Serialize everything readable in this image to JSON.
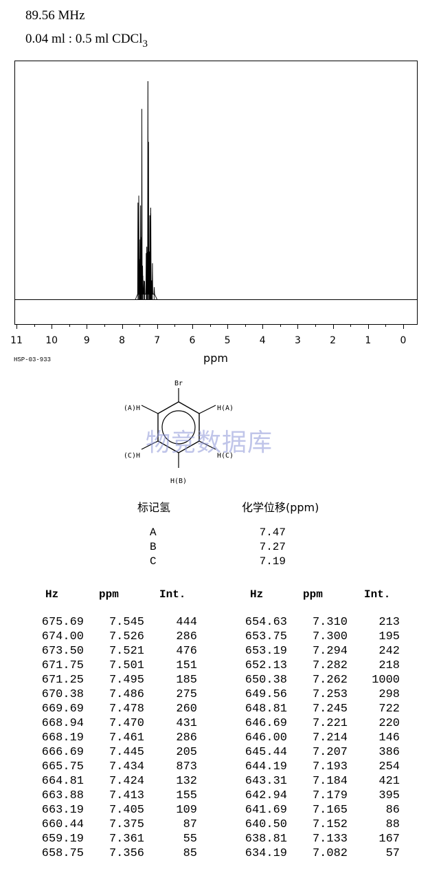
{
  "header": {
    "frequency": "89.56 MHz",
    "sample_main": "0.04 ml : 0.5 ml CDCl",
    "sample_sub": "3"
  },
  "spectrum_code": "HSP-03-933",
  "structure": {
    "substituent_top": "Br",
    "labels": {
      "left_upper": "(A)H",
      "right_upper": "H(A)",
      "left_lower": "(C)H",
      "right_lower": "H(C)",
      "bottom": "H(B)"
    }
  },
  "watermark": "物竞数据库",
  "assignment": {
    "col_label": "标记氢",
    "col_shift": "化学位移(ppm)",
    "rows": [
      {
        "label": "A",
        "shift": "7.47"
      },
      {
        "label": "B",
        "shift": "7.27"
      },
      {
        "label": "C",
        "shift": "7.19"
      }
    ]
  },
  "peak_table": {
    "headers": [
      "Hz",
      "ppm",
      "Int."
    ],
    "left": [
      [
        "675.69",
        "7.545",
        "444"
      ],
      [
        "674.00",
        "7.526",
        "286"
      ],
      [
        "673.50",
        "7.521",
        "476"
      ],
      [
        "671.75",
        "7.501",
        "151"
      ],
      [
        "671.25",
        "7.495",
        "185"
      ],
      [
        "670.38",
        "7.486",
        "275"
      ],
      [
        "669.69",
        "7.478",
        "260"
      ],
      [
        "668.94",
        "7.470",
        "431"
      ],
      [
        "668.19",
        "7.461",
        "286"
      ],
      [
        "666.69",
        "7.445",
        "205"
      ],
      [
        "665.75",
        "7.434",
        "873"
      ],
      [
        "664.81",
        "7.424",
        "132"
      ],
      [
        "663.88",
        "7.413",
        "155"
      ],
      [
        "663.19",
        "7.405",
        "109"
      ],
      [
        "660.44",
        "7.375",
        "87"
      ],
      [
        "659.19",
        "7.361",
        "55"
      ],
      [
        "658.75",
        "7.356",
        "85"
      ]
    ],
    "right": [
      [
        "654.63",
        "7.310",
        "213"
      ],
      [
        "653.75",
        "7.300",
        "195"
      ],
      [
        "653.19",
        "7.294",
        "242"
      ],
      [
        "652.13",
        "7.282",
        "218"
      ],
      [
        "650.38",
        "7.262",
        "1000"
      ],
      [
        "649.56",
        "7.253",
        "298"
      ],
      [
        "648.81",
        "7.245",
        "722"
      ],
      [
        "646.69",
        "7.221",
        "220"
      ],
      [
        "646.00",
        "7.214",
        "146"
      ],
      [
        "645.44",
        "7.207",
        "386"
      ],
      [
        "644.19",
        "7.193",
        "254"
      ],
      [
        "643.31",
        "7.184",
        "421"
      ],
      [
        "642.94",
        "7.179",
        "395"
      ],
      [
        "641.69",
        "7.165",
        "86"
      ],
      [
        "640.50",
        "7.152",
        "88"
      ],
      [
        "638.81",
        "7.133",
        "167"
      ],
      [
        "634.19",
        "7.082",
        "57"
      ]
    ]
  },
  "chart_data": {
    "type": "line",
    "xlabel": "ppm",
    "ylabel": "",
    "xlim": [
      11,
      0
    ],
    "x_reversed": true,
    "x_ticks": [
      11,
      10,
      9,
      8,
      7,
      6,
      5,
      4,
      3,
      2,
      1,
      0
    ],
    "ylim": [
      0,
      1000
    ],
    "grid": false,
    "peaks": [
      {
        "ppm": 7.545,
        "intensity": 444
      },
      {
        "ppm": 7.526,
        "intensity": 286
      },
      {
        "ppm": 7.521,
        "intensity": 476
      },
      {
        "ppm": 7.501,
        "intensity": 151
      },
      {
        "ppm": 7.495,
        "intensity": 185
      },
      {
        "ppm": 7.486,
        "intensity": 275
      },
      {
        "ppm": 7.478,
        "intensity": 260
      },
      {
        "ppm": 7.47,
        "intensity": 431
      },
      {
        "ppm": 7.461,
        "intensity": 286
      },
      {
        "ppm": 7.445,
        "intensity": 205
      },
      {
        "ppm": 7.434,
        "intensity": 873
      },
      {
        "ppm": 7.424,
        "intensity": 132
      },
      {
        "ppm": 7.413,
        "intensity": 155
      },
      {
        "ppm": 7.405,
        "intensity": 109
      },
      {
        "ppm": 7.375,
        "intensity": 87
      },
      {
        "ppm": 7.361,
        "intensity": 55
      },
      {
        "ppm": 7.356,
        "intensity": 85
      },
      {
        "ppm": 7.31,
        "intensity": 213
      },
      {
        "ppm": 7.3,
        "intensity": 195
      },
      {
        "ppm": 7.294,
        "intensity": 242
      },
      {
        "ppm": 7.282,
        "intensity": 218
      },
      {
        "ppm": 7.262,
        "intensity": 1000
      },
      {
        "ppm": 7.253,
        "intensity": 298
      },
      {
        "ppm": 7.245,
        "intensity": 722
      },
      {
        "ppm": 7.221,
        "intensity": 220
      },
      {
        "ppm": 7.214,
        "intensity": 146
      },
      {
        "ppm": 7.207,
        "intensity": 386
      },
      {
        "ppm": 7.193,
        "intensity": 254
      },
      {
        "ppm": 7.184,
        "intensity": 421
      },
      {
        "ppm": 7.179,
        "intensity": 395
      },
      {
        "ppm": 7.165,
        "intensity": 86
      },
      {
        "ppm": 7.152,
        "intensity": 88
      },
      {
        "ppm": 7.133,
        "intensity": 167
      },
      {
        "ppm": 7.082,
        "intensity": 57
      }
    ]
  }
}
